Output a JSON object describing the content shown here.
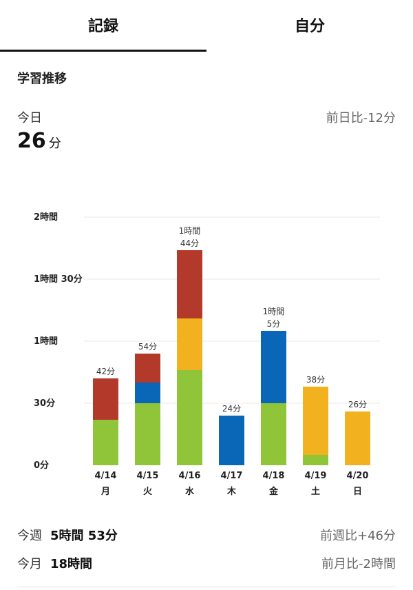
{
  "tabs": [
    {
      "label": "記録",
      "active": true
    },
    {
      "label": "自分",
      "active": false
    }
  ],
  "section_title": "学習推移",
  "today": {
    "label": "今日",
    "value": "26",
    "unit": "分",
    "compare": "前日比-12分"
  },
  "colors": {
    "red": "#b3392a",
    "blue": "#0a66b7",
    "yellow": "#f2b21f",
    "green": "#90c53a"
  },
  "chart_data": {
    "type": "bar",
    "stacked": true,
    "categories": [
      "4/14",
      "4/15",
      "4/16",
      "4/17",
      "4/18",
      "4/19",
      "4/20"
    ],
    "weekdays": [
      "月",
      "火",
      "水",
      "木",
      "金",
      "土",
      "日"
    ],
    "ylim": [
      0,
      120
    ],
    "yticks": [
      {
        "value": 0,
        "label": "0分"
      },
      {
        "value": 30,
        "label": "30分"
      },
      {
        "value": 60,
        "label": "1時間"
      },
      {
        "value": 90,
        "label": "1時間 30分"
      },
      {
        "value": 120,
        "label": "2時間"
      }
    ],
    "grid": true,
    "series": [
      {
        "color": "#90c53a",
        "values": [
          22,
          30,
          46,
          0,
          30,
          5,
          0
        ]
      },
      {
        "color": "#0a66b7",
        "values": [
          0,
          10,
          0,
          24,
          35,
          0,
          0
        ]
      },
      {
        "color": "#f2b21f",
        "values": [
          0,
          0,
          25,
          0,
          0,
          33,
          26
        ]
      },
      {
        "color": "#b3392a",
        "values": [
          20,
          14,
          33,
          0,
          0,
          0,
          0
        ]
      }
    ],
    "totals": [
      [
        "42分"
      ],
      [
        "54分"
      ],
      [
        "1時間",
        "44分"
      ],
      [
        "24分"
      ],
      [
        "1時間",
        "5分"
      ],
      [
        "38分"
      ],
      [
        "26分"
      ]
    ]
  },
  "week": {
    "label": "今週",
    "value": "5時間 53分",
    "compare": "前週比+46分"
  },
  "month": {
    "label": "今月",
    "value": "18時間",
    "compare": "前月比-2時間"
  }
}
